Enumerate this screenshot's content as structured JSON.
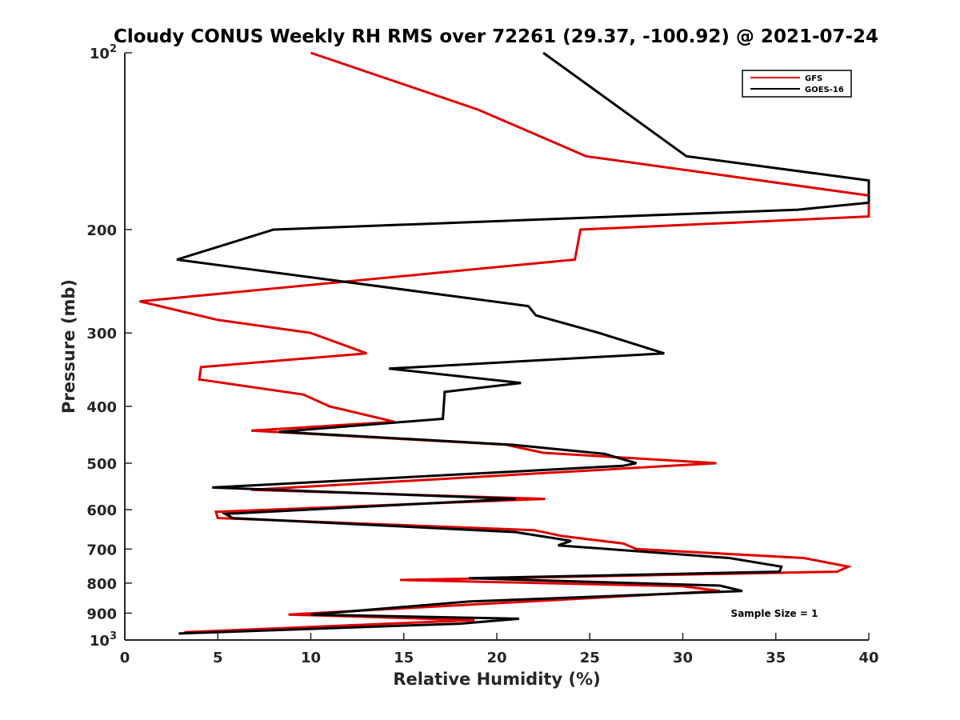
{
  "chart_data": {
    "type": "line",
    "title": "Cloudy CONUS Weekly RH RMS over 72261 (29.37, -100.92) @ 2021-07-24",
    "xlabel": "Relative Humidity (%)",
    "ylabel": "Pressure (mb)",
    "xlim": [
      0,
      40
    ],
    "ylim": [
      100,
      1000
    ],
    "y_scale": "log",
    "y_reversed": true,
    "x_ticks": [
      "0",
      "5",
      "10",
      "15",
      "20",
      "25",
      "30",
      "35",
      "40"
    ],
    "y_ticks": [
      {
        "value": 100,
        "base": "10",
        "exp": "2"
      },
      {
        "value": 200,
        "label": "200"
      },
      {
        "value": 300,
        "label": "300"
      },
      {
        "value": 400,
        "label": "400"
      },
      {
        "value": 500,
        "label": "500"
      },
      {
        "value": 600,
        "label": "600"
      },
      {
        "value": 700,
        "label": "700"
      },
      {
        "value": 800,
        "label": "800"
      },
      {
        "value": 900,
        "label": "900"
      },
      {
        "value": 1000,
        "base": "10",
        "exp": "3"
      }
    ],
    "grid": false,
    "legend_position": "top-right",
    "annotation": "Sample Size = 1",
    "series": [
      {
        "name": "GFS",
        "color": "#e00000",
        "points": [
          [
            10.0,
            100
          ],
          [
            19.0,
            125
          ],
          [
            24.8,
            150
          ],
          [
            40.0,
            175
          ],
          [
            40.0,
            190
          ],
          [
            24.5,
            200
          ],
          [
            24.2,
            225
          ],
          [
            0.8,
            265
          ],
          [
            5.0,
            285
          ],
          [
            10.0,
            300
          ],
          [
            13.0,
            325
          ],
          [
            4.1,
            343
          ],
          [
            4.0,
            360
          ],
          [
            9.6,
            382
          ],
          [
            11.0,
            400
          ],
          [
            14.5,
            425
          ],
          [
            6.8,
            440
          ],
          [
            20.5,
            465
          ],
          [
            22.5,
            480
          ],
          [
            31.8,
            500
          ],
          [
            6.8,
            555
          ],
          [
            22.6,
            575
          ],
          [
            4.9,
            605
          ],
          [
            5.0,
            620
          ],
          [
            22.0,
            650
          ],
          [
            23.5,
            665
          ],
          [
            26.8,
            685
          ],
          [
            27.5,
            700
          ],
          [
            36.5,
            725
          ],
          [
            38.9,
            750
          ],
          [
            38.3,
            765
          ],
          [
            14.8,
            790
          ],
          [
            30.0,
            810
          ],
          [
            32.0,
            825
          ],
          [
            8.8,
            905
          ],
          [
            18.8,
            925
          ],
          [
            3.2,
            970
          ]
        ]
      },
      {
        "name": "GOES-16",
        "color": "#000000",
        "points": [
          [
            22.5,
            100
          ],
          [
            30.2,
            150
          ],
          [
            40.0,
            165
          ],
          [
            40.0,
            180
          ],
          [
            36.2,
            185
          ],
          [
            8.0,
            200
          ],
          [
            2.8,
            225
          ],
          [
            21.7,
            270
          ],
          [
            22.1,
            280
          ],
          [
            25.5,
            300
          ],
          [
            29.0,
            325
          ],
          [
            14.2,
            345
          ],
          [
            21.3,
            365
          ],
          [
            17.2,
            378
          ],
          [
            17.1,
            420
          ],
          [
            8.3,
            442
          ],
          [
            20.8,
            465
          ],
          [
            25.8,
            482
          ],
          [
            27.5,
            500
          ],
          [
            26.8,
            505
          ],
          [
            4.7,
            550
          ],
          [
            21.0,
            575
          ],
          [
            5.4,
            610
          ],
          [
            5.8,
            620
          ],
          [
            21.0,
            655
          ],
          [
            24.0,
            678
          ],
          [
            23.3,
            690
          ],
          [
            32.5,
            725
          ],
          [
            35.3,
            750
          ],
          [
            35.2,
            765
          ],
          [
            18.5,
            785
          ],
          [
            32.0,
            808
          ],
          [
            33.2,
            825
          ],
          [
            18.5,
            860
          ],
          [
            10.0,
            905
          ],
          [
            21.2,
            920
          ],
          [
            18.0,
            938
          ],
          [
            2.9,
            975
          ]
        ]
      }
    ]
  }
}
